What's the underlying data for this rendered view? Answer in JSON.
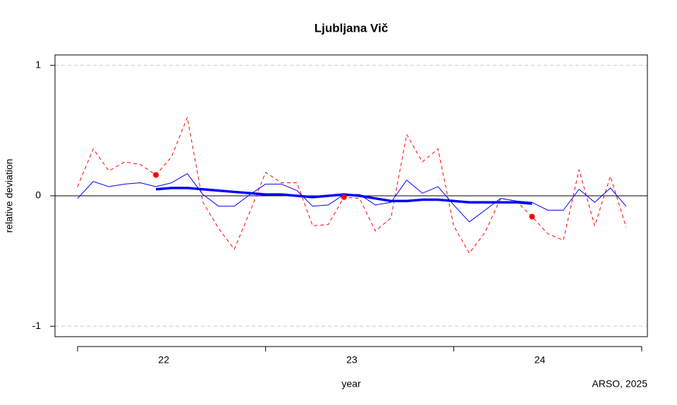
{
  "chart_data": {
    "type": "line",
    "title": "Ljubljana Vič",
    "y_label": "relative deviation",
    "x_label": "year",
    "credit": "ARSO, 2025",
    "x": [
      0,
      1,
      2,
      3,
      4,
      5,
      6,
      7,
      8,
      9,
      10,
      11,
      12,
      13,
      14,
      15,
      16,
      17,
      18,
      19,
      20,
      21,
      22,
      23,
      24,
      25,
      26,
      27,
      28,
      29,
      30,
      31,
      32,
      33,
      34,
      35
    ],
    "xlim": [
      -1.44,
      36.36
    ],
    "xticks": [
      {
        "value": 5.5,
        "label": "22"
      },
      {
        "value": 17.5,
        "label": "23"
      },
      {
        "value": 29.5,
        "label": "24"
      }
    ],
    "xtick_marks": [
      0,
      12,
      24,
      36
    ],
    "ylim": [
      -1.08,
      1.08
    ],
    "yticks": [
      -1,
      0,
      1
    ],
    "grid": true,
    "hline": 0,
    "series": [
      {
        "color": "#ff0000",
        "style": "dashed",
        "width": 1,
        "values": [
          0.07,
          0.36,
          0.19,
          0.26,
          0.24,
          0.16,
          0.3,
          0.6,
          -0.05,
          -0.25,
          -0.41,
          -0.12,
          0.18,
          0.1,
          0.1,
          -0.23,
          -0.22,
          -0.01,
          -0.02,
          -0.27,
          -0.17,
          0.47,
          0.26,
          0.36,
          -0.23,
          -0.44,
          -0.28,
          -0.02,
          -0.04,
          -0.16,
          -0.29,
          -0.34,
          0.2,
          -0.23,
          0.15,
          -0.24
        ]
      },
      {
        "color": "#0000ff",
        "style": "solid",
        "width": 1,
        "values": [
          -0.02,
          0.11,
          0.07,
          0.09,
          0.1,
          0.07,
          0.1,
          0.17,
          0.01,
          -0.08,
          -0.08,
          0.01,
          0.09,
          0.09,
          0.04,
          -0.08,
          -0.07,
          0.01,
          0.01,
          -0.07,
          -0.05,
          0.12,
          0.02,
          0.07,
          -0.07,
          -0.2,
          -0.11,
          -0.02,
          -0.04,
          -0.05,
          -0.11,
          -0.11,
          0.05,
          -0.05,
          0.06,
          -0.08
        ]
      },
      {
        "color": "#0000ff",
        "style": "solid",
        "width": 3.5,
        "values": [
          null,
          null,
          null,
          null,
          null,
          0.05,
          0.06,
          0.06,
          0.05,
          0.04,
          0.03,
          0.02,
          0.01,
          0.01,
          0.0,
          -0.01,
          0.0,
          0.01,
          0.0,
          -0.02,
          -0.04,
          -0.04,
          -0.03,
          -0.03,
          -0.04,
          -0.05,
          -0.05,
          -0.05,
          -0.05,
          -0.06,
          null,
          null,
          null,
          null,
          null,
          null
        ]
      },
      {
        "color": "#ff0000",
        "style": "points",
        "width": 4,
        "values": [
          null,
          null,
          null,
          null,
          null,
          0.16,
          null,
          null,
          null,
          null,
          null,
          null,
          null,
          null,
          null,
          null,
          null,
          -0.01,
          null,
          null,
          null,
          null,
          null,
          null,
          null,
          null,
          null,
          null,
          null,
          -0.16,
          null,
          null,
          null,
          null,
          null,
          null
        ]
      }
    ]
  }
}
